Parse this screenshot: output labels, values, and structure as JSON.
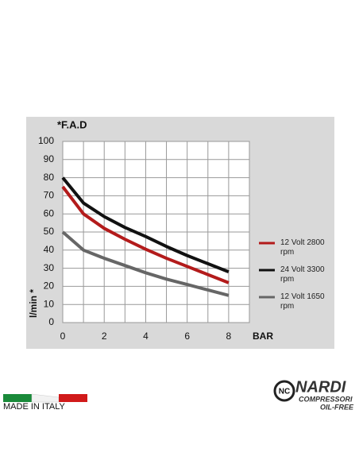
{
  "chart_data": {
    "type": "line",
    "title": "*F.A.D",
    "x_label": "BAR",
    "y_label": "l/min *",
    "x": [
      0,
      1,
      2,
      3,
      4,
      5,
      6,
      7,
      8
    ],
    "series": [
      {
        "name": "12 Volt 2800 rpm",
        "color": "#b31b1b",
        "values": [
          75,
          60,
          52,
          46,
          40.5,
          35.5,
          31,
          26.5,
          22
        ]
      },
      {
        "name": "24 Volt 3300 rpm",
        "color": "#111111",
        "values": [
          80,
          66,
          58.5,
          52.5,
          47.5,
          42,
          37,
          32.5,
          28
        ]
      },
      {
        "name": "12 Volt 1650 rpm",
        "color": "#666666",
        "values": [
          50,
          40,
          35.5,
          31.5,
          27.5,
          24,
          21,
          18,
          15
        ]
      }
    ],
    "xlim": [
      0,
      9
    ],
    "xticks": [
      0,
      2,
      4,
      6,
      8
    ],
    "ylim": [
      0,
      100
    ],
    "yticks": [
      0,
      10,
      20,
      30,
      40,
      50,
      60,
      70,
      80,
      90,
      100
    ],
    "grid": true
  },
  "footer": {
    "made_in": "MADE IN ITALY",
    "brand": "NARDI",
    "brand_sub": "COMPRESSORI",
    "brand_tag": "OIL-FREE"
  }
}
